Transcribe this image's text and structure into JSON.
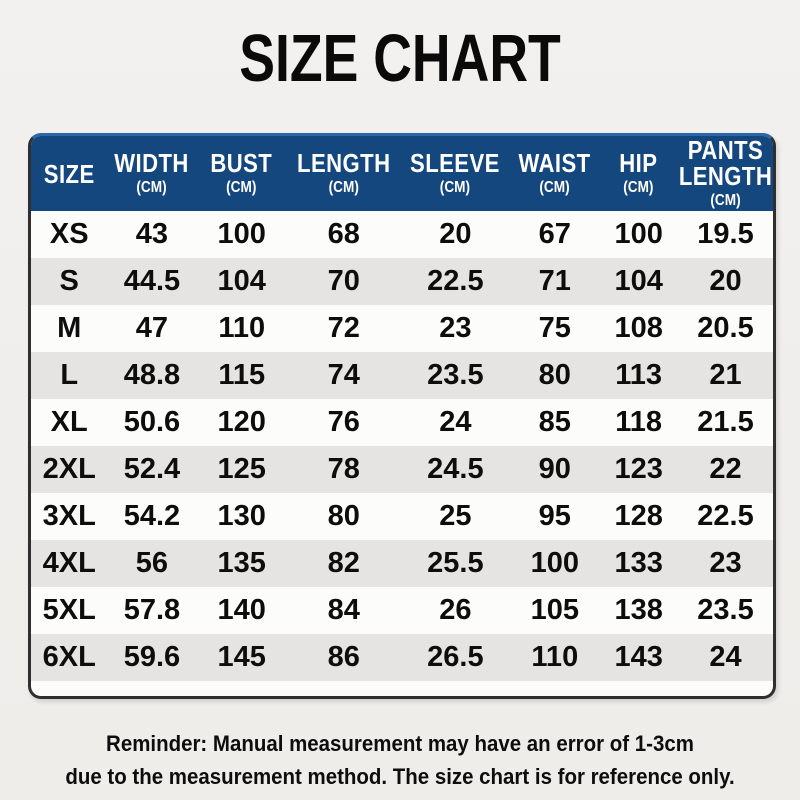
{
  "chart_data": {
    "type": "table",
    "title": "SIZE CHART",
    "columns": [
      {
        "label": "SIZE",
        "unit": ""
      },
      {
        "label": "WIDTH",
        "unit": "(CM)"
      },
      {
        "label": "BUST",
        "unit": "(CM)"
      },
      {
        "label": "LENGTH",
        "unit": "(CM)"
      },
      {
        "label": "SLEEVE",
        "unit": "(CM)"
      },
      {
        "label": "WAIST",
        "unit": "(CM)"
      },
      {
        "label": "HIP",
        "unit": "(CM)"
      },
      {
        "label": "PANTS LENGTH",
        "unit": "(CM)"
      }
    ],
    "rows": [
      {
        "size": "XS",
        "values": [
          "43",
          "100",
          "68",
          "20",
          "67",
          "100",
          "19.5"
        ]
      },
      {
        "size": "S",
        "values": [
          "44.5",
          "104",
          "70",
          "22.5",
          "71",
          "104",
          "20"
        ]
      },
      {
        "size": "M",
        "values": [
          "47",
          "110",
          "72",
          "23",
          "75",
          "108",
          "20.5"
        ]
      },
      {
        "size": "L",
        "values": [
          "48.8",
          "115",
          "74",
          "23.5",
          "80",
          "113",
          "21"
        ]
      },
      {
        "size": "XL",
        "values": [
          "50.6",
          "120",
          "76",
          "24",
          "85",
          "118",
          "21.5"
        ]
      },
      {
        "size": "2XL",
        "values": [
          "52.4",
          "125",
          "78",
          "24.5",
          "90",
          "123",
          "22"
        ]
      },
      {
        "size": "3XL",
        "values": [
          "54.2",
          "130",
          "80",
          "25",
          "95",
          "128",
          "22.5"
        ]
      },
      {
        "size": "4XL",
        "values": [
          "56",
          "135",
          "82",
          "25.5",
          "100",
          "133",
          "23"
        ]
      },
      {
        "size": "5XL",
        "values": [
          "57.8",
          "140",
          "84",
          "26",
          "105",
          "138",
          "23.5"
        ]
      },
      {
        "size": "6XL",
        "values": [
          "59.6",
          "145",
          "86",
          "26.5",
          "110",
          "143",
          "24"
        ]
      }
    ]
  },
  "footer": {
    "line1": "Reminder: Manual measurement may have an error of 1-3cm",
    "line2": "due to the measurement method. The size chart is for reference only."
  },
  "colors": {
    "page_bg": "#f1efec",
    "header_bg": "#15477f",
    "header_top_edge": "#2b67ab",
    "header_text": "#ffffff",
    "row_bg": "#fcfcfb",
    "row_alt_bg": "#e5e4e2",
    "border": "#2f2f2f",
    "text": "#0d0d0d"
  }
}
